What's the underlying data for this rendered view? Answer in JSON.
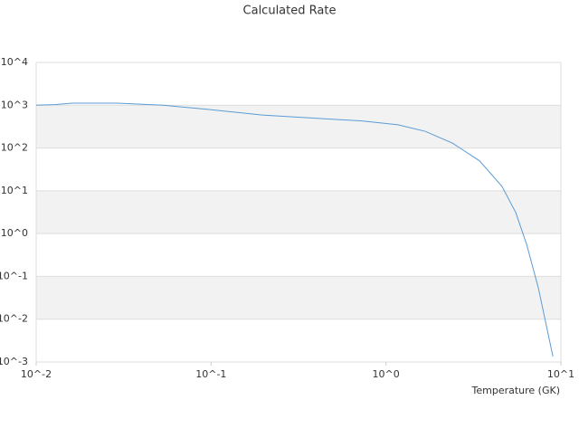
{
  "chart_data": {
    "type": "line",
    "title": "Calculated Rate",
    "x_label": "Temperature (GK)",
    "x_log": true,
    "y_log": true,
    "grid": true,
    "alternate_bands": true,
    "band_color": "#f2f2f2",
    "xlim": [
      0.01,
      10
    ],
    "ylim": [
      0.001,
      10000
    ],
    "xticks": [
      {
        "value": 0.01,
        "label": "10^-2"
      },
      {
        "value": 0.1,
        "label": "10^-1"
      },
      {
        "value": 1,
        "label": "10^0"
      },
      {
        "value": 10,
        "label": "10^1"
      }
    ],
    "yticks": [
      {
        "value": 0.001,
        "label": "10^-3"
      },
      {
        "value": 0.01,
        "label": "10^-2"
      },
      {
        "value": 0.1,
        "label": "10^-1"
      },
      {
        "value": 1,
        "label": "10^0"
      },
      {
        "value": 10,
        "label": "10^1"
      },
      {
        "value": 100,
        "label": "10^2"
      },
      {
        "value": 1000,
        "label": "10^3"
      },
      {
        "value": 10000,
        "label": "10^4"
      }
    ],
    "x": [
      0.01,
      0.0127,
      0.0161,
      0.0292,
      0.053,
      0.096,
      0.196,
      0.356,
      0.728,
      1.17,
      1.68,
      2.4,
      3.43,
      4.61,
      5.52,
      6.37,
      7.43,
      9.0
    ],
    "series": [
      {
        "color": "#5b9bd5",
        "values": [
          1000,
          1030,
          1120,
          1120,
          1000,
          800,
          590,
          510,
          430,
          350,
          245,
          130,
          50,
          12.6,
          3.1,
          0.56,
          0.054,
          0.00135
        ]
      }
    ]
  }
}
